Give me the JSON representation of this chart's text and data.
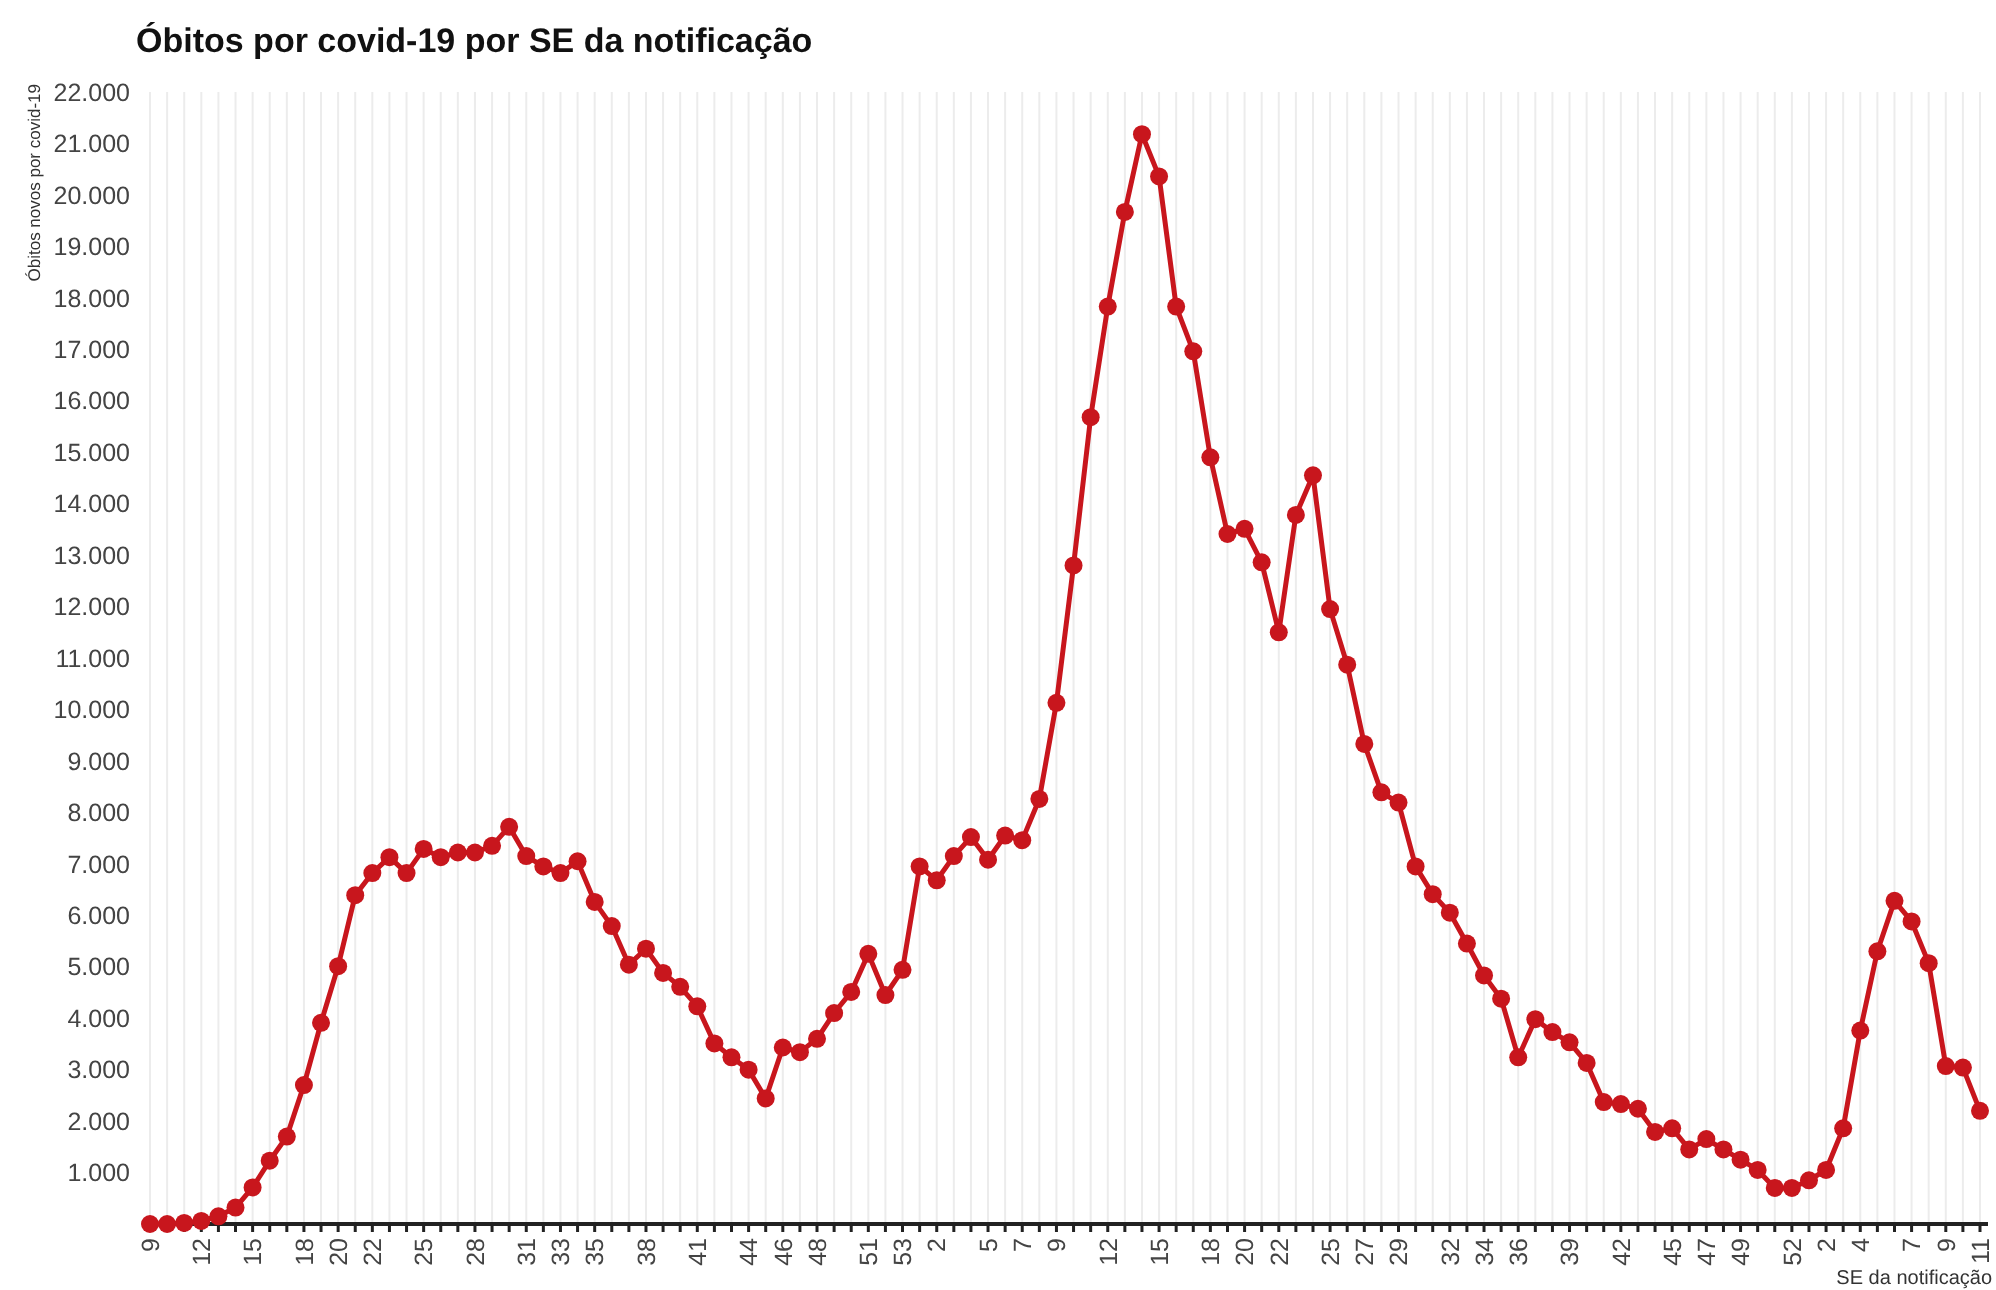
{
  "chart_data": {
    "type": "line",
    "title": "Óbitos por covid-19 por SE da notificação",
    "xlabel": "SE da notificação",
    "ylabel": "Óbitos novos por covid-19",
    "categories": [
      "9",
      null,
      null,
      "12",
      null,
      null,
      "15",
      null,
      null,
      "18",
      null,
      "20",
      null,
      "22",
      null,
      null,
      "25",
      null,
      null,
      "28",
      null,
      null,
      "31",
      null,
      "33",
      null,
      "35",
      null,
      null,
      "38",
      null,
      null,
      "41",
      null,
      null,
      "44",
      null,
      "46",
      null,
      "48",
      null,
      null,
      "51",
      null,
      "53",
      null,
      "2",
      null,
      null,
      "5",
      null,
      "7",
      null,
      "9",
      null,
      null,
      "12",
      null,
      null,
      "15",
      null,
      null,
      "18",
      null,
      "20",
      null,
      "22",
      null,
      null,
      "25",
      null,
      "27",
      null,
      "29",
      null,
      null,
      "32",
      null,
      "34",
      null,
      "36",
      null,
      null,
      "39",
      null,
      null,
      "42",
      null,
      null,
      "45",
      null,
      "47",
      null,
      "49",
      null,
      null,
      "52",
      null,
      "2",
      null,
      "4",
      null,
      null,
      "7",
      null,
      "9",
      null,
      "11"
    ],
    "series": [
      {
        "color": "#c8161d",
        "values": [
          0,
          0,
          20,
          60,
          150,
          320,
          710,
          1230,
          1700,
          2700,
          3910,
          5010,
          6390,
          6820,
          7130,
          6820,
          7290,
          7130,
          7220,
          7220,
          7350,
          7720,
          7150,
          6950,
          6820,
          7050,
          6260,
          5790,
          5040,
          5350,
          4880,
          4610,
          4230,
          3510,
          3240,
          3000,
          2440,
          3430,
          3340,
          3600,
          4100,
          4510,
          5250,
          4450,
          4940,
          6950,
          6680,
          7150,
          7520,
          7080,
          7550,
          7460,
          8260,
          10130,
          12800,
          15680,
          17830,
          19670,
          21180,
          20360,
          17830,
          16960,
          14900,
          13410,
          13510,
          12860,
          11500,
          13780,
          14550,
          11950,
          10870,
          9330,
          8390,
          8190,
          6950,
          6410,
          6050,
          5450,
          4830,
          4380,
          3240,
          3980,
          3730,
          3530,
          3130,
          2370,
          2330,
          2240,
          1790,
          1860,
          1450,
          1650,
          1450,
          1250,
          1050,
          700,
          700,
          850,
          1050,
          1860,
          3760,
          5300,
          6280,
          5880,
          5070,
          3070,
          3040,
          2200
        ]
      }
    ],
    "ylim": [
      0,
      22000
    ],
    "yticks": [
      {
        "value": 1000,
        "label": "1.000"
      },
      {
        "value": 2000,
        "label": "2.000"
      },
      {
        "value": 3000,
        "label": "3.000"
      },
      {
        "value": 4000,
        "label": "4.000"
      },
      {
        "value": 5000,
        "label": "5.000"
      },
      {
        "value": 6000,
        "label": "6.000"
      },
      {
        "value": 7000,
        "label": "7.000"
      },
      {
        "value": 8000,
        "label": "8.000"
      },
      {
        "value": 9000,
        "label": "9.000"
      },
      {
        "value": 10000,
        "label": "10.000"
      },
      {
        "value": 11000,
        "label": "11.000"
      },
      {
        "value": 12000,
        "label": "12.000"
      },
      {
        "value": 13000,
        "label": "13.000"
      },
      {
        "value": 14000,
        "label": "14.000"
      },
      {
        "value": 15000,
        "label": "15.000"
      },
      {
        "value": 16000,
        "label": "16.000"
      },
      {
        "value": 17000,
        "label": "17.000"
      },
      {
        "value": 18000,
        "label": "18.000"
      },
      {
        "value": 19000,
        "label": "19.000"
      },
      {
        "value": 20000,
        "label": "20.000"
      },
      {
        "value": 21000,
        "label": "21.000"
      },
      {
        "value": 22000,
        "label": "22.000"
      }
    ],
    "grid": "x",
    "marker": "circle",
    "line_style": "solid"
  }
}
